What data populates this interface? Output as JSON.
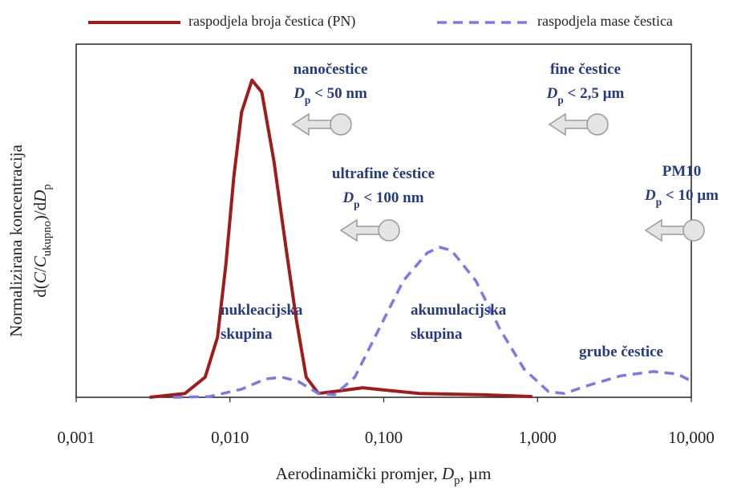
{
  "chart_data": {
    "type": "line",
    "xlog": true,
    "xlim": [
      0.001,
      10
    ],
    "ylim": [
      0,
      1
    ],
    "xticks": [
      {
        "value": 0.001,
        "label": "0,001"
      },
      {
        "value": 0.01,
        "label": "0,010"
      },
      {
        "value": 0.1,
        "label": "0,100"
      },
      {
        "value": 1,
        "label": "1,000"
      },
      {
        "value": 10,
        "label": "10,000"
      }
    ],
    "x_label": [
      "Aerodinamički promjer, ",
      {
        "text": "D",
        "style": "italic"
      },
      {
        "text": "p",
        "style": "sub"
      },
      ", µm"
    ],
    "y_label": [
      [
        "Normalizirana koncentracija"
      ],
      [
        "d(",
        {
          "text": "C",
          "style": "italic"
        },
        "/",
        {
          "text": "C",
          "style": "italic"
        },
        {
          "text": "ukupno",
          "style": "sub"
        },
        ")/d",
        {
          "text": "D",
          "style": "italic"
        },
        {
          "text": "p",
          "style": "sub"
        }
      ]
    ],
    "series": [
      {
        "name": "raspodjela broja čestica (PN)",
        "color": "#a01c1c",
        "dash": false,
        "x": [
          0.003,
          0.0051,
          0.0069,
          0.0083,
          0.0094,
          0.0106,
          0.0119,
          0.0139,
          0.0161,
          0.0193,
          0.0232,
          0.0271,
          0.0313,
          0.0376,
          0.0508,
          0.0731,
          0.105,
          0.17,
          0.448,
          0.925
        ],
        "values": [
          0,
          0.011,
          0.057,
          0.17,
          0.375,
          0.625,
          0.807,
          0.898,
          0.864,
          0.67,
          0.42,
          0.216,
          0.057,
          0.011,
          0.018,
          0.027,
          0.02,
          0.011,
          0.007,
          0.002
        ]
      },
      {
        "name": "raspodjela mase čestica",
        "color": "#7a7ae6",
        "dash": true,
        "x": [
          0.00427,
          0.00734,
          0.0119,
          0.0171,
          0.0218,
          0.0278,
          0.0376,
          0.0479,
          0.0648,
          0.093,
          0.134,
          0.192,
          0.23,
          0.276,
          0.397,
          0.57,
          0.818,
          1.18,
          1.5,
          2.15,
          3.49,
          5.66,
          8.14,
          9.77
        ],
        "values": [
          0,
          0.002,
          0.023,
          0.052,
          0.057,
          0.045,
          0.011,
          0.007,
          0.057,
          0.193,
          0.33,
          0.409,
          0.425,
          0.416,
          0.33,
          0.193,
          0.08,
          0.016,
          0.011,
          0.034,
          0.061,
          0.073,
          0.066,
          0.048
        ]
      }
    ],
    "annotations": [
      {
        "lines": [
          [
            "nanočestice"
          ],
          [
            {
              "text": "D",
              "style": "italic"
            },
            {
              "text": "p",
              "style": "sub"
            },
            " < 50 nm"
          ]
        ]
      },
      {
        "lines": [
          [
            "fine čestice"
          ],
          [
            {
              "text": "D",
              "style": "italic"
            },
            {
              "text": "p",
              "style": "sub"
            },
            " < 2,5 µm"
          ]
        ]
      },
      {
        "lines": [
          [
            "ultrafine čestice"
          ],
          [
            {
              "text": "D",
              "style": "italic"
            },
            {
              "text": "p",
              "style": "sub"
            },
            " < 100 nm"
          ]
        ]
      },
      {
        "lines": [
          [
            "PM10"
          ],
          [
            {
              "text": "D",
              "style": "italic"
            },
            {
              "text": "p",
              "style": "sub"
            },
            " < 10 µm"
          ]
        ]
      },
      {
        "lines": [
          [
            "nukleacijska"
          ],
          [
            "skupina"
          ]
        ]
      },
      {
        "lines": [
          [
            "akumulacijska"
          ],
          [
            "skupina"
          ]
        ]
      },
      {
        "lines": [
          [
            "grube čestice"
          ]
        ]
      }
    ]
  }
}
